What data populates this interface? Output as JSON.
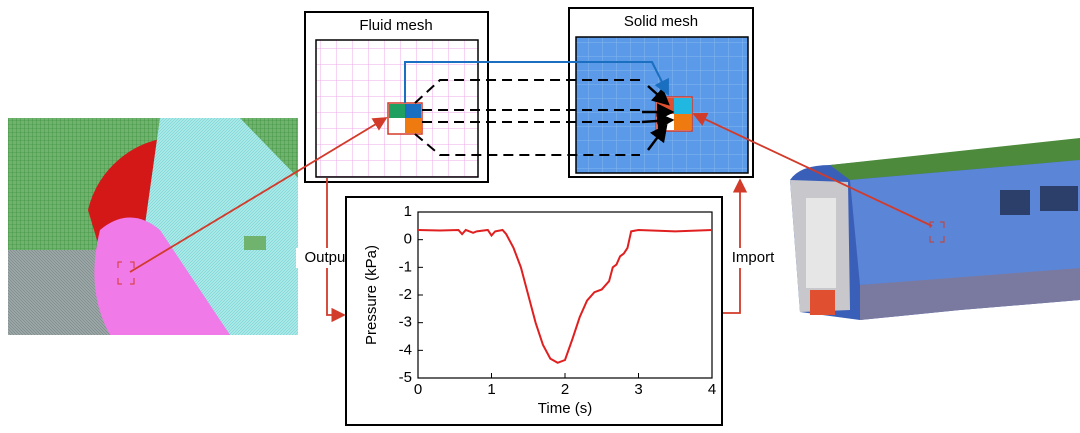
{
  "labels": {
    "fluid_mesh": "Fluid mesh",
    "solid_mesh": "Solid mesh",
    "output": "Output",
    "import": "Import"
  },
  "chart_data": {
    "type": "line",
    "xlabel": "Time (s)",
    "ylabel": "Pressure (kPa)",
    "color": "#e02020",
    "x": [
      0,
      0.3,
      0.55,
      0.6,
      0.65,
      0.75,
      0.8,
      0.95,
      1.0,
      1.05,
      1.15,
      1.2,
      1.3,
      1.4,
      1.5,
      1.6,
      1.7,
      1.8,
      1.9,
      2.0,
      2.1,
      2.2,
      2.3,
      2.4,
      2.5,
      2.6,
      2.65,
      2.7,
      2.75,
      2.8,
      2.85,
      2.9,
      3.0,
      3.5,
      4.0
    ],
    "values": [
      0.35,
      0.33,
      0.35,
      0.2,
      0.35,
      0.25,
      0.3,
      0.35,
      0.15,
      0.3,
      0.35,
      0.2,
      -0.3,
      -1.0,
      -2.0,
      -3.0,
      -3.8,
      -4.3,
      -4.45,
      -4.35,
      -3.6,
      -2.8,
      -2.2,
      -1.9,
      -1.8,
      -1.5,
      -1.0,
      -0.9,
      -0.6,
      -0.5,
      -0.3,
      0.3,
      0.35,
      0.3,
      0.35
    ],
    "xlim": [
      0,
      4
    ],
    "ylim": [
      -5,
      1
    ],
    "xticks": [
      0,
      1,
      2,
      3,
      4
    ],
    "yticks": [
      1,
      0,
      -1,
      -2,
      -3,
      -4,
      -5
    ]
  }
}
